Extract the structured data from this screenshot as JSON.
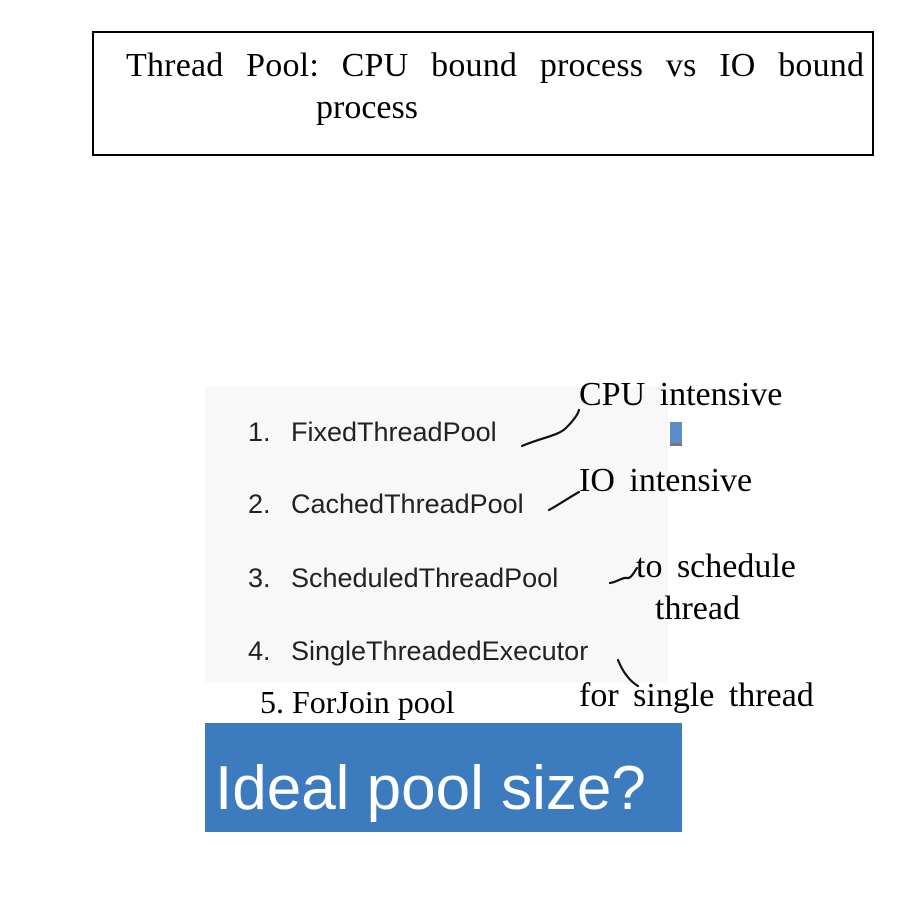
{
  "title": {
    "line1": "Thread Pool: CPU bound process vs IO bound",
    "line2": "process"
  },
  "pool_list": [
    {
      "number": "1.",
      "name": "FixedThreadPool"
    },
    {
      "number": "2.",
      "name": "CachedThreadPool"
    },
    {
      "number": "3.",
      "name": "ScheduledThreadPool"
    },
    {
      "number": "4.",
      "name": "SingleThreadedExecutor"
    }
  ],
  "extra_item": "5. ForJoin pool",
  "annotations": {
    "fixed": "CPU intensive",
    "cached": "IO intensive",
    "scheduled_line1": "to schedule",
    "scheduled_line2": "thread",
    "single": "for single thread"
  },
  "banner": {
    "text": "Ideal pool size?",
    "color": "#3c7bbd"
  }
}
